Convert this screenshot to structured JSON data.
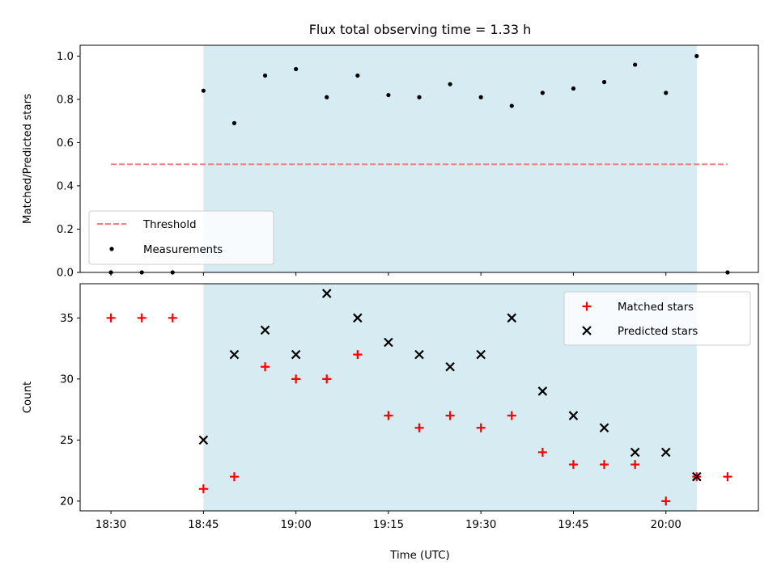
{
  "chart_data": {
    "type": "scatter",
    "title": "Flux total observing time = 1.33 h",
    "xlabel": "Time (UTC)",
    "x_ticks": [
      "18:30",
      "18:45",
      "19:00",
      "19:15",
      "19:30",
      "19:45",
      "20:00"
    ],
    "x_tick_minutes": [
      0,
      15,
      30,
      45,
      60,
      75,
      90
    ],
    "xlim_minutes": [
      -5,
      105
    ],
    "observing_window_minutes": [
      15,
      95
    ],
    "observing_window_color": "#add8e6",
    "panels": [
      {
        "ylabel": "Matched/Predicted stars",
        "ylim": [
          0,
          1.05
        ],
        "yticks": [
          0.0,
          0.2,
          0.4,
          0.6,
          0.8,
          1.0
        ],
        "ytick_labels": [
          "0.0",
          "0.2",
          "0.4",
          "0.6",
          "0.8",
          "1.0"
        ],
        "legend_position": "lower-left",
        "threshold": {
          "name": "Threshold",
          "value": 0.5,
          "x_minutes": [
            0,
            100
          ],
          "color": "#f08080",
          "style": "dashed"
        },
        "series": [
          {
            "name": "Measurements",
            "color": "#000000",
            "marker": "dot",
            "x_minutes": [
              0,
              5,
              10,
              15,
              20,
              25,
              30,
              35,
              40,
              45,
              50,
              55,
              60,
              65,
              70,
              75,
              80,
              85,
              90,
              95,
              100
            ],
            "values": [
              0.0,
              0.0,
              0.0,
              0.84,
              0.69,
              0.91,
              0.94,
              0.81,
              0.91,
              0.82,
              0.81,
              0.87,
              0.81,
              0.77,
              0.83,
              0.85,
              0.88,
              0.96,
              0.83,
              1.0,
              0.0
            ]
          }
        ]
      },
      {
        "ylabel": "Count",
        "ylim": [
          19.2,
          37.8
        ],
        "yticks": [
          20,
          25,
          30,
          35
        ],
        "ytick_labels": [
          "20",
          "25",
          "30",
          "35"
        ],
        "legend_position": "top-right",
        "series": [
          {
            "name": "Matched stars",
            "color": "#ff0000",
            "marker": "plus",
            "x_minutes": [
              0,
              5,
              10,
              15,
              20,
              25,
              30,
              35,
              40,
              45,
              50,
              55,
              60,
              65,
              70,
              75,
              80,
              85,
              90,
              95,
              100
            ],
            "values": [
              35,
              35,
              35,
              21,
              22,
              31,
              30,
              30,
              32,
              27,
              26,
              27,
              26,
              27,
              24,
              23,
              23,
              23,
              20,
              22,
              22
            ]
          },
          {
            "name": "Predicted stars",
            "color": "#000000",
            "marker": "x",
            "x_minutes": [
              15,
              20,
              25,
              30,
              35,
              40,
              45,
              50,
              55,
              60,
              65,
              70,
              75,
              80,
              85,
              90,
              95
            ],
            "values": [
              25,
              32,
              34,
              32,
              37,
              35,
              33,
              32,
              31,
              32,
              35,
              29,
              27,
              26,
              24,
              24,
              22
            ]
          }
        ]
      }
    ]
  }
}
